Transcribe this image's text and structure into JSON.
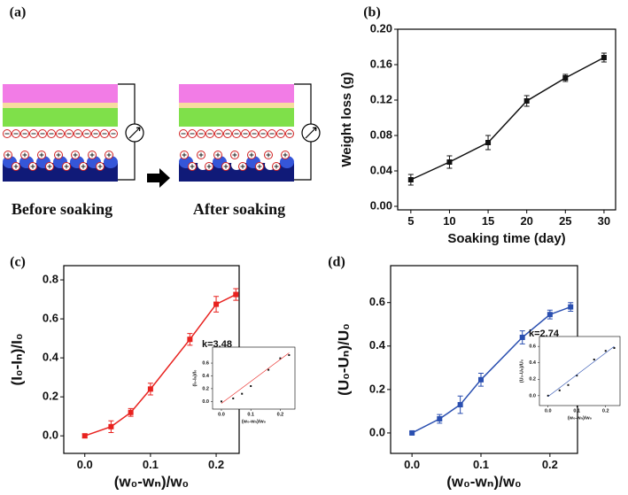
{
  "diagram": {
    "panel_label": "(a)",
    "left_caption": "Before soaking",
    "right_caption": "After soaking"
  },
  "chart_data": [
    {
      "type": "line",
      "panel_label": "(b)",
      "xlabel": "Soaking time (day)",
      "ylabel": "Weight loss (g)",
      "x": [
        5,
        10,
        15,
        20,
        25,
        30
      ],
      "series": [
        {
          "color": "#111111",
          "mode": "lines+markers",
          "values": [
            0.03,
            0.05,
            0.072,
            0.119,
            0.145,
            0.168
          ],
          "errors": [
            0.006,
            0.007,
            0.008,
            0.006,
            0.004,
            0.005
          ]
        }
      ],
      "xlim": [
        3.3,
        31.5
      ],
      "xticks": [
        5,
        10,
        15,
        20,
        25,
        30
      ],
      "ylim": [
        -0.004,
        0.2
      ],
      "yticks": [
        {
          "value": 0.0,
          "label": "0.00"
        },
        {
          "value": 0.04,
          "label": "0.04"
        },
        {
          "value": 0.08,
          "label": "0.08"
        },
        {
          "value": 0.12,
          "label": "0.12"
        },
        {
          "value": 0.16,
          "label": "0.16"
        },
        {
          "value": 0.2,
          "label": "0.20"
        }
      ]
    },
    {
      "type": "line",
      "panel_label": "(c)",
      "xlabel": "(w₀-wₙ)/w₀",
      "ylabel": "(I₀-Iₙ)/I₀",
      "x": [
        0,
        0.04,
        0.07,
        0.1,
        0.16,
        0.2,
        0.23
      ],
      "series": [
        {
          "color": "#e8221f",
          "mode": "lines+markers",
          "values": [
            0,
            0.047,
            0.12,
            0.24,
            0.495,
            0.675,
            0.725
          ],
          "errors": [
            0.01,
            0.03,
            0.02,
            0.03,
            0.03,
            0.04,
            0.03
          ]
        }
      ],
      "xlim": [
        -0.032,
        0.235
      ],
      "xticks": [
        {
          "value": 0.0,
          "label": "0.0"
        },
        0.1,
        0.2
      ],
      "ylim": [
        -0.09,
        0.873
      ],
      "yticks": [
        {
          "value": 0.0,
          "label": "0.0"
        },
        0.2,
        0.4,
        0.6,
        0.8
      ]
    },
    {
      "type": "scatter",
      "annotation": "k=3.48",
      "xlabel": "(w₀-wₙ)/w₀",
      "ylabel": "(I₀-Iₙ)/I₀",
      "x": [
        0,
        0.04,
        0.07,
        0.1,
        0.16,
        0.2,
        0.23
      ],
      "series": [
        {
          "color": "#111111",
          "mode": "markers",
          "values": [
            0,
            0.047,
            0.12,
            0.24,
            0.495,
            0.675,
            0.725
          ]
        },
        {
          "color": "#e8221f",
          "mode": "lines",
          "x": [
            0,
            0.23
          ],
          "values": [
            -0.03,
            0.76
          ]
        }
      ],
      "xlim": [
        -0.03,
        0.25
      ],
      "xticks": [
        {
          "value": 0.0,
          "label": "0.0"
        },
        0.1,
        0.2
      ],
      "ylim": [
        -0.12,
        0.85
      ],
      "yticks": [
        {
          "value": 0.0,
          "label": "0.0"
        },
        0.2,
        0.4,
        0.6
      ]
    },
    {
      "type": "line",
      "panel_label": "(d)",
      "xlabel": "(w₀-wₙ)/w₀",
      "ylabel": "(U₀-Uₙ)/U₀",
      "x": [
        0,
        0.04,
        0.07,
        0.1,
        0.16,
        0.2,
        0.23
      ],
      "series": [
        {
          "color": "#2a4fb0",
          "mode": "lines+markers",
          "values": [
            0,
            0.065,
            0.13,
            0.245,
            0.44,
            0.545,
            0.58
          ],
          "errors": [
            0.005,
            0.02,
            0.04,
            0.03,
            0.03,
            0.02,
            0.02
          ]
        }
      ],
      "xlim": [
        -0.031,
        0.24
      ],
      "xticks": [
        {
          "value": 0.0,
          "label": "0.0"
        },
        0.1,
        0.2
      ],
      "ylim": [
        -0.094,
        0.77
      ],
      "yticks": [
        {
          "value": 0.0,
          "label": "0.0"
        },
        0.2,
        0.4,
        0.6
      ]
    },
    {
      "type": "scatter",
      "annotation": "k=2.74",
      "xlabel": "(w₀-wₙ)/w₀",
      "ylabel": "(U₀-Uₙ)/U₀",
      "x": [
        0,
        0.04,
        0.07,
        0.1,
        0.16,
        0.2,
        0.23
      ],
      "series": [
        {
          "color": "#111111",
          "mode": "markers",
          "values": [
            0,
            0.065,
            0.13,
            0.245,
            0.44,
            0.545,
            0.58
          ]
        },
        {
          "color": "#2a4fb0",
          "mode": "lines",
          "x": [
            0,
            0.23
          ],
          "values": [
            -0.01,
            0.6
          ]
        }
      ],
      "xlim": [
        -0.03,
        0.25
      ],
      "xticks": [
        {
          "value": 0.0,
          "label": "0.0"
        },
        0.1,
        0.2
      ],
      "ylim": [
        -0.12,
        0.72
      ],
      "yticks": [
        {
          "value": 0.0,
          "label": "0.0"
        },
        0.2,
        0.4,
        0.6
      ]
    }
  ]
}
